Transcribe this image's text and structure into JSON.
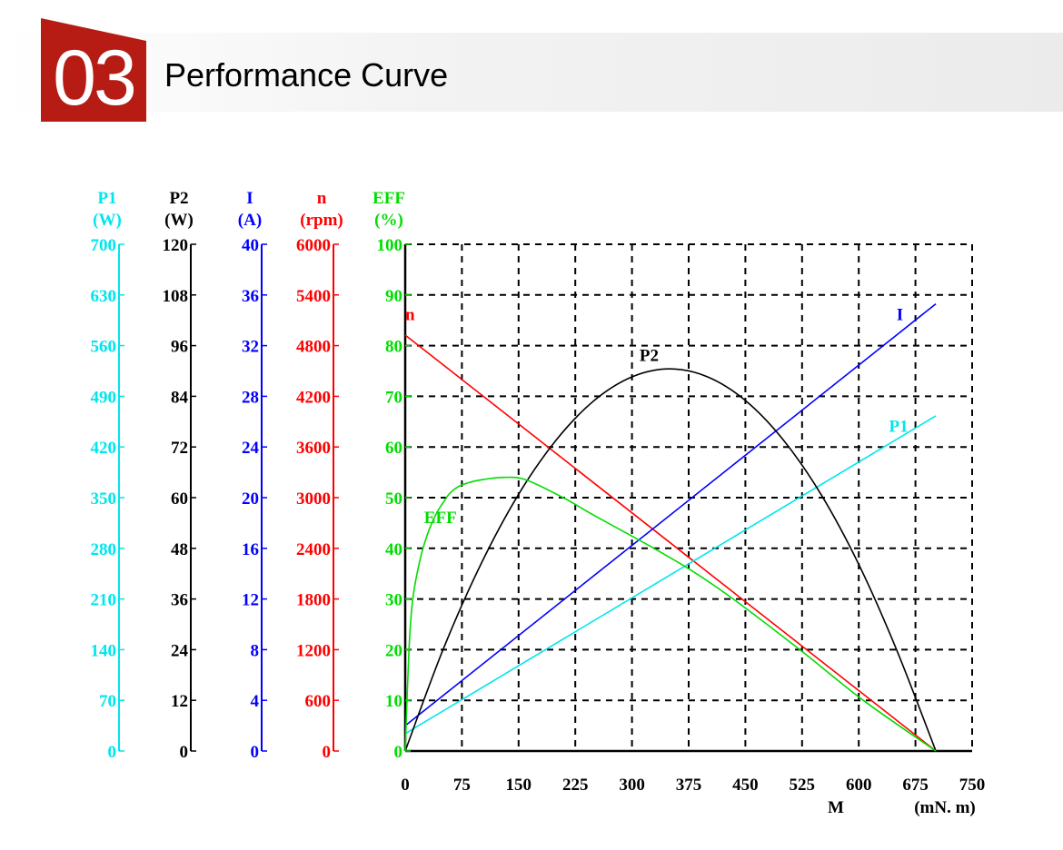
{
  "header": {
    "number": "03",
    "title": "Performance Curve",
    "badge_color": "#b71c14"
  },
  "chart_data": {
    "type": "line",
    "title": "Performance Curve",
    "xlabel": "M",
    "xunit": "(mN. m)",
    "xlim": [
      0,
      750
    ],
    "xticks": [
      "0",
      "75",
      "150",
      "225",
      "300",
      "375",
      "450",
      "525",
      "600",
      "675",
      "750"
    ],
    "grid": true,
    "axes": [
      {
        "key": "P1",
        "name": "P1",
        "unit": "(W)",
        "color": "#00e5ee",
        "max": 700,
        "ticks": [
          "0",
          "70",
          "140",
          "210",
          "280",
          "350",
          "420",
          "490",
          "560",
          "630",
          "700"
        ]
      },
      {
        "key": "P2",
        "name": "P2",
        "unit": "(W)",
        "color": "#000000",
        "max": 120,
        "ticks": [
          "0",
          "12",
          "24",
          "36",
          "48",
          "60",
          "72",
          "84",
          "96",
          "108",
          "120"
        ]
      },
      {
        "key": "I",
        "name": "I",
        "unit": "(A)",
        "color": "#0000ff",
        "max": 40,
        "ticks": [
          "0",
          "4",
          "8",
          "12",
          "16",
          "20",
          "24",
          "28",
          "32",
          "36",
          "40"
        ]
      },
      {
        "key": "n",
        "name": "n",
        "unit": "(rpm)",
        "color": "#ff0000",
        "max": 6000,
        "ticks": [
          "0",
          "600",
          "1200",
          "1800",
          "2400",
          "3000",
          "3600",
          "4200",
          "4800",
          "5400",
          "6000"
        ]
      },
      {
        "key": "EFF",
        "name": "EFF",
        "unit": "(%)",
        "color": "#00dd00",
        "max": 100,
        "ticks": [
          "0",
          "10",
          "20",
          "30",
          "40",
          "50",
          "60",
          "70",
          "80",
          "90",
          "100"
        ]
      }
    ],
    "series": [
      {
        "name": "n",
        "axis": "n",
        "color": "#ff0000",
        "x": [
          0,
          702
        ],
        "y": [
          4925,
          0
        ]
      },
      {
        "name": "I",
        "axis": "I",
        "color": "#0000ff",
        "x": [
          0,
          702
        ],
        "y": [
          2.0,
          35.3
        ]
      },
      {
        "name": "P1",
        "axis": "P1",
        "color": "#00e5ee",
        "x": [
          0,
          702
        ],
        "y": [
          24,
          463
        ]
      },
      {
        "name": "P2",
        "axis": "P2",
        "color": "#000000",
        "x": [
          0,
          50,
          100,
          150,
          200,
          250,
          300,
          350,
          400,
          450,
          500,
          550,
          600,
          650,
          702
        ],
        "y": [
          0,
          24.0,
          44.2,
          60.8,
          73.7,
          83.0,
          88.6,
          90.5,
          88.6,
          83.0,
          73.7,
          60.8,
          44.2,
          24.0,
          0
        ]
      },
      {
        "name": "EFF",
        "axis": "EFF",
        "color": "#00dd00",
        "x": [
          0,
          5,
          10,
          20,
          30,
          40,
          50,
          60,
          75,
          100,
          131,
          160,
          209,
          250,
          329,
          380,
          434,
          522,
          606,
          702
        ],
        "y": [
          0,
          20,
          30,
          38,
          43,
          46.5,
          49,
          51,
          52.5,
          53.5,
          54,
          53.5,
          50,
          46.5,
          40,
          35.5,
          30,
          20,
          10,
          0
        ]
      }
    ],
    "labels": [
      {
        "text": "n",
        "series": "n",
        "x": 0,
        "y": 85
      },
      {
        "text": "I",
        "series": "I",
        "x": 650,
        "y": 85
      },
      {
        "text": "P2",
        "series": "P2",
        "x": 310,
        "y": 77
      },
      {
        "text": "P1",
        "series": "P1",
        "x": 640,
        "y": 63
      },
      {
        "text": "EFF",
        "series": "EFF",
        "x": 25,
        "y": 45
      }
    ]
  }
}
